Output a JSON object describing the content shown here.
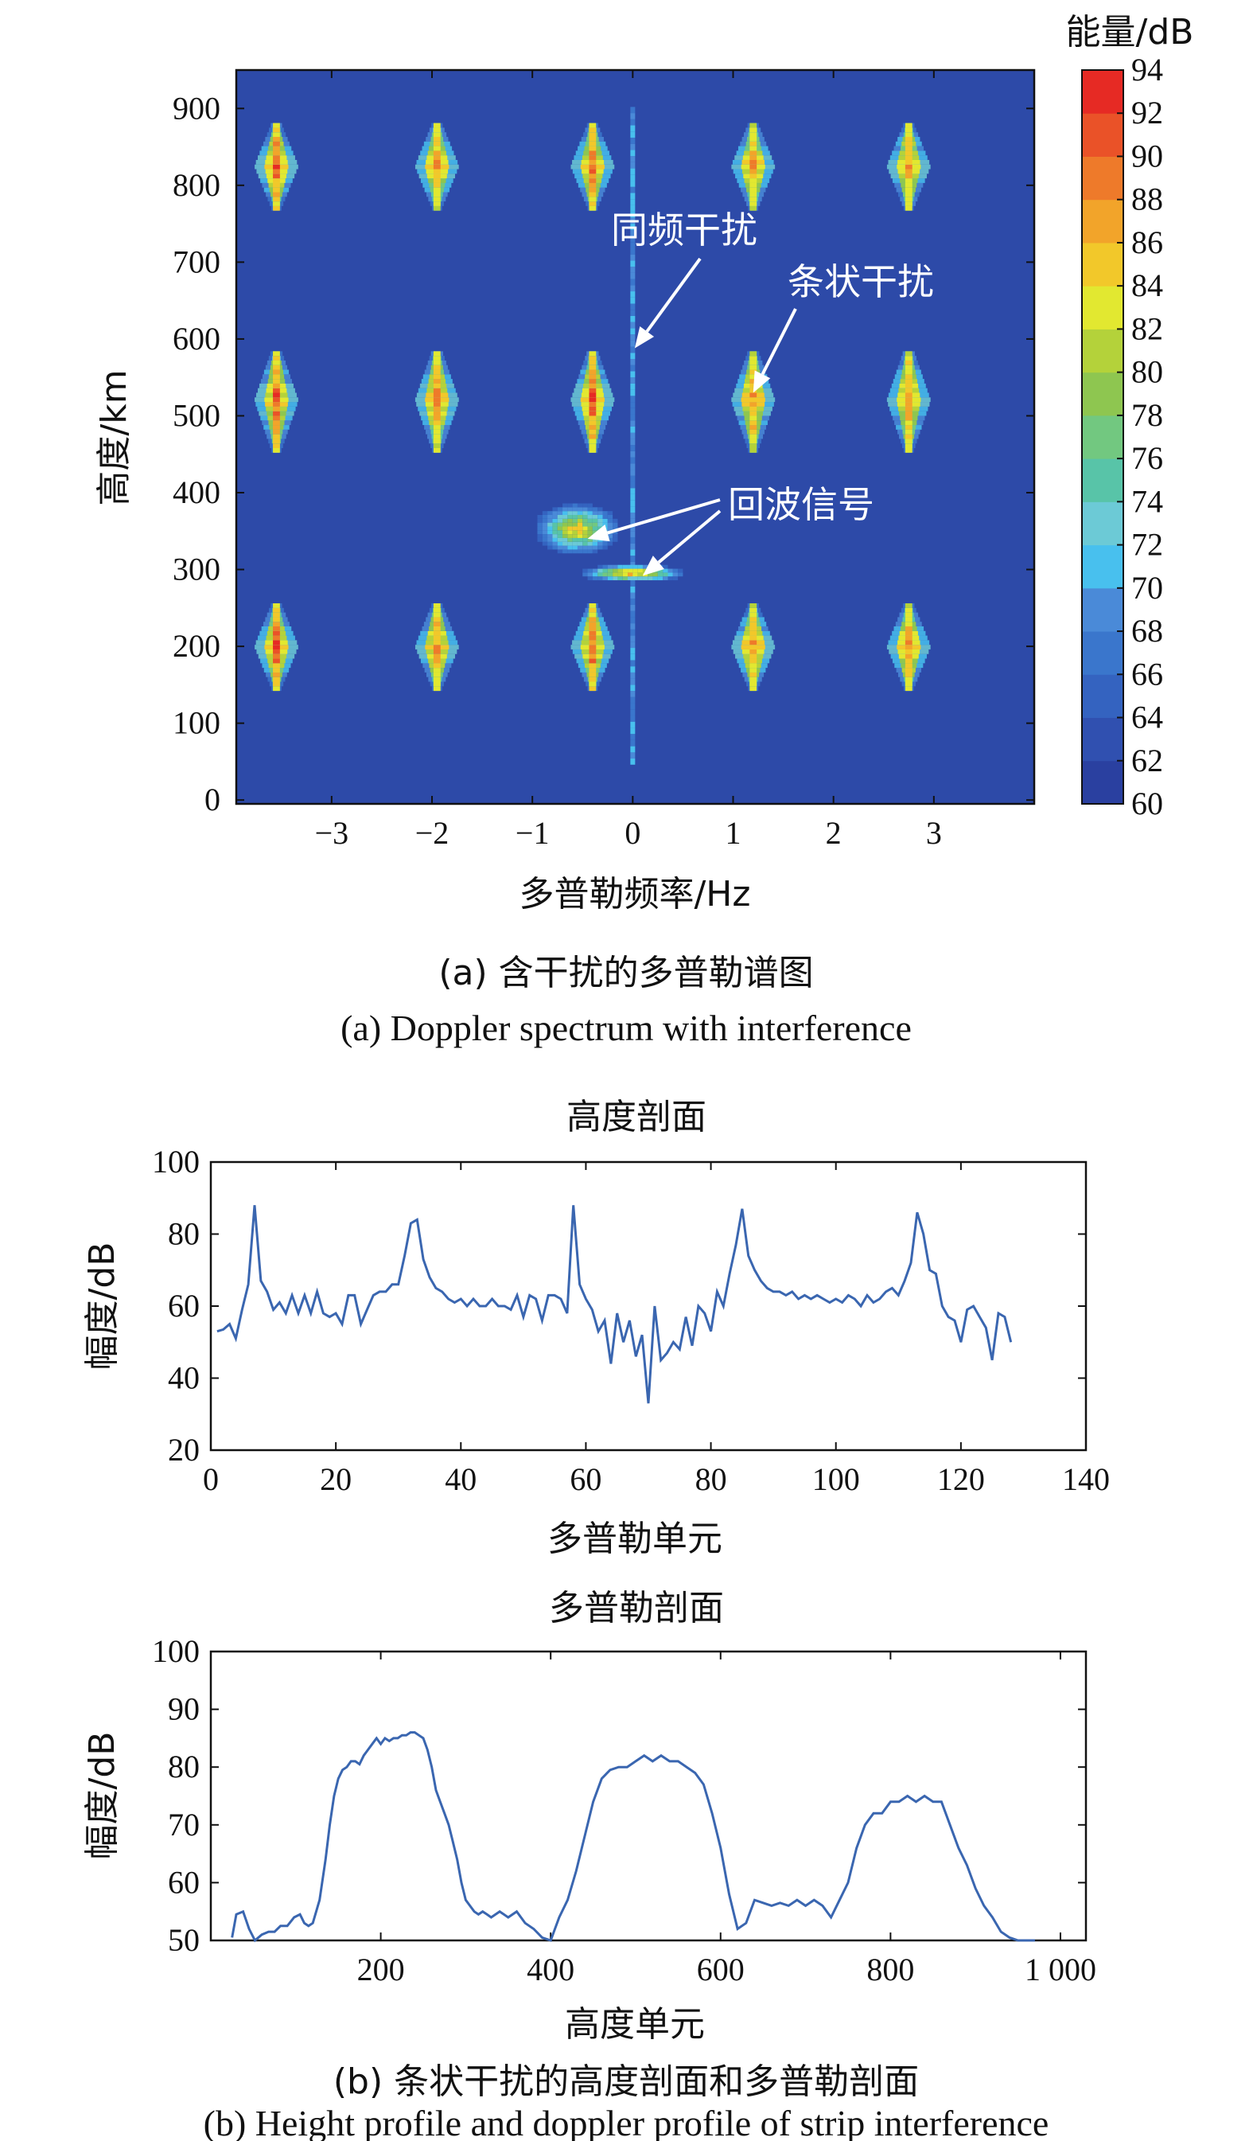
{
  "figure_a": {
    "caption_zh": "(a) 含干扰的多普勒谱图",
    "caption_en": "(a) Doppler spectrum with interference"
  },
  "figure_b": {
    "caption_zh": "(b) 条状干扰的高度剖面和多普勒剖面",
    "caption_en": "(b) Height profile and doppler profile of strip interference"
  },
  "chart_data": [
    {
      "type": "heatmap",
      "title": "",
      "xlabel": "多普勒频率/Hz",
      "ylabel": "高度/km",
      "xlim": [
        -3.95,
        4.0
      ],
      "ylim": [
        -5,
        950
      ],
      "x_ticks": [
        -3,
        -2,
        -1,
        0,
        1,
        2,
        3
      ],
      "x_tick_labels": [
        "−3",
        "−2",
        "−1",
        "0",
        "1",
        "2",
        "3"
      ],
      "y_ticks": [
        0,
        100,
        200,
        300,
        400,
        500,
        600,
        700,
        800,
        900
      ],
      "colorbar": {
        "label": "能量/dB",
        "min": 60,
        "max": 94,
        "ticks": [
          60,
          62,
          64,
          66,
          68,
          70,
          72,
          74,
          76,
          78,
          80,
          82,
          84,
          86,
          88,
          90,
          92,
          94
        ],
        "colors": [
          "#2a40a0",
          "#3050b0",
          "#3463c0",
          "#3a76cc",
          "#4a8ad8",
          "#48c0ee",
          "#6ccad6",
          "#58c4a8",
          "#72c880",
          "#8ec650",
          "#b4d23a",
          "#e2e830",
          "#f2c82a",
          "#f2a42a",
          "#ee7a2a",
          "#ea5228",
          "#e62a24"
        ]
      },
      "background_color": "#2d4aa8",
      "strips": [
        {
          "x": -3.55,
          "y_ranges": [
            [
              145,
              255
            ],
            [
              455,
              585
            ],
            [
              770,
              880
            ]
          ],
          "peak": 94
        },
        {
          "x": -1.95,
          "y_ranges": [
            [
              145,
              255
            ],
            [
              455,
              585
            ],
            [
              770,
              880
            ]
          ],
          "peak": 90
        },
        {
          "x": -0.4,
          "y_ranges": [
            [
              145,
              255
            ],
            [
              455,
              585
            ],
            [
              770,
              880
            ]
          ],
          "peak": 94
        },
        {
          "x": 1.2,
          "y_ranges": [
            [
              145,
              255
            ],
            [
              455,
              585
            ],
            [
              770,
              880
            ]
          ],
          "peak": 90
        },
        {
          "x": 2.75,
          "y_ranges": [
            [
              145,
              255
            ],
            [
              455,
              585
            ],
            [
              770,
              880
            ]
          ],
          "peak": 90
        }
      ],
      "interference_line": {
        "x": 0.0,
        "y_range": [
          50,
          905
        ]
      },
      "echo_blobs": [
        {
          "x_range": [
            -0.85,
            -0.3
          ],
          "y_range": [
            320,
            380
          ],
          "peak": 90
        },
        {
          "x_range": [
            -0.4,
            0.35
          ],
          "y_range": [
            285,
            300
          ],
          "peak": 94
        }
      ],
      "annotations": [
        {
          "text": "同频干扰",
          "target": [
            0.02,
            588
          ]
        },
        {
          "text": "条状干扰",
          "target": [
            1.2,
            530
          ]
        },
        {
          "text": "回波信号",
          "targets": [
            [
              -0.45,
              340
            ],
            [
              0.1,
              292
            ]
          ]
        }
      ]
    },
    {
      "type": "line",
      "title": "高度剖面",
      "xlabel": "多普勒单元",
      "ylabel": "幅度/dB",
      "xlim": [
        0,
        140
      ],
      "ylim": [
        20,
        100
      ],
      "x_ticks": [
        0,
        20,
        40,
        60,
        80,
        100,
        120,
        140
      ],
      "y_ticks": [
        20,
        40,
        60,
        80,
        100
      ],
      "line_color": "#3a66b0",
      "x": [
        1,
        2,
        3,
        4,
        5,
        6,
        7,
        8,
        9,
        10,
        11,
        12,
        13,
        14,
        15,
        16,
        17,
        18,
        19,
        20,
        21,
        22,
        23,
        24,
        25,
        26,
        27,
        28,
        29,
        30,
        31,
        32,
        33,
        34,
        35,
        36,
        37,
        38,
        39,
        40,
        41,
        42,
        43,
        44,
        45,
        46,
        47,
        48,
        49,
        50,
        51,
        52,
        53,
        54,
        55,
        56,
        57,
        58,
        59,
        60,
        61,
        62,
        63,
        64,
        65,
        66,
        67,
        68,
        69,
        70,
        71,
        72,
        73,
        74,
        75,
        76,
        77,
        78,
        79,
        80,
        81,
        82,
        83,
        84,
        85,
        86,
        87,
        88,
        89,
        90,
        91,
        92,
        93,
        94,
        95,
        96,
        97,
        98,
        99,
        100,
        101,
        102,
        103,
        104,
        105,
        106,
        107,
        108,
        109,
        110,
        111,
        112,
        113,
        114,
        115,
        116,
        117,
        118,
        119,
        120,
        121,
        122,
        123,
        124,
        125,
        126,
        127,
        128
      ],
      "values": [
        53,
        53.5,
        55,
        51,
        59,
        66,
        88,
        67,
        64,
        59,
        61,
        58,
        63,
        58,
        63,
        58,
        64,
        58,
        57,
        58,
        55,
        63,
        63,
        55,
        59,
        63,
        64,
        64,
        66,
        66,
        74,
        83,
        84,
        73,
        68,
        65,
        64,
        62,
        61,
        62,
        60,
        62,
        60,
        60,
        62,
        60,
        60,
        59,
        63,
        57,
        63,
        62,
        56,
        63,
        63,
        62,
        58,
        88,
        66,
        62,
        59,
        53,
        56,
        44,
        58,
        50,
        56,
        46,
        52,
        33,
        60,
        45,
        47,
        50,
        48,
        57,
        49,
        60,
        58,
        53,
        64,
        60,
        69,
        77,
        87,
        74,
        70,
        67,
        65,
        64,
        64,
        63,
        64,
        62,
        63,
        62,
        63,
        62,
        61,
        62,
        61,
        63,
        62,
        60,
        63,
        61,
        62,
        64,
        65,
        63,
        67,
        72,
        86,
        80,
        70,
        69,
        60,
        57,
        56,
        50,
        59,
        60,
        57,
        54,
        45,
        58,
        57,
        50
      ]
    },
    {
      "type": "line",
      "title": "多普勒剖面",
      "xlabel": "高度单元",
      "ylabel": "幅度/dB",
      "xlim": [
        0,
        1030
      ],
      "ylim": [
        50,
        100
      ],
      "x_ticks": [
        200,
        400,
        600,
        800,
        1000
      ],
      "x_tick_labels": [
        "200",
        "400",
        "600",
        "800",
        "1 000"
      ],
      "y_ticks": [
        50,
        60,
        70,
        80,
        90,
        100
      ],
      "line_color": "#3a66b0",
      "x": [
        25,
        30,
        38,
        45,
        52,
        60,
        68,
        75,
        82,
        90,
        98,
        105,
        110,
        115,
        120,
        128,
        135,
        140,
        145,
        150,
        155,
        160,
        165,
        170,
        175,
        180,
        185,
        190,
        195,
        200,
        205,
        210,
        215,
        220,
        225,
        230,
        235,
        240,
        245,
        250,
        255,
        260,
        265,
        270,
        275,
        280,
        285,
        290,
        295,
        300,
        305,
        310,
        315,
        320,
        325,
        330,
        340,
        350,
        360,
        370,
        380,
        390,
        400,
        410,
        420,
        430,
        440,
        450,
        460,
        470,
        480,
        490,
        500,
        510,
        520,
        530,
        540,
        550,
        560,
        570,
        580,
        590,
        600,
        610,
        620,
        630,
        640,
        650,
        660,
        670,
        680,
        690,
        700,
        710,
        720,
        730,
        740,
        750,
        760,
        770,
        780,
        790,
        800,
        810,
        820,
        830,
        840,
        850,
        860,
        870,
        880,
        890,
        900,
        910,
        920,
        930,
        940,
        950,
        960,
        970
      ],
      "values": [
        50.5,
        54.5,
        55,
        52,
        49.5,
        51,
        51.5,
        51.5,
        52.5,
        52.5,
        54,
        54.5,
        53,
        52.5,
        53,
        57,
        64,
        70,
        75,
        78,
        79.5,
        80,
        81,
        81,
        80.5,
        82,
        83,
        84,
        85,
        84,
        85,
        84.5,
        85,
        85,
        85.5,
        85.5,
        86,
        86,
        85.5,
        85,
        83,
        80,
        76,
        74,
        72,
        70,
        67,
        64,
        60,
        57,
        56,
        55,
        54.5,
        55,
        54.5,
        54,
        55,
        54,
        55,
        53,
        52,
        50.5,
        50,
        54,
        57,
        62,
        68,
        74,
        78,
        79.5,
        80,
        80,
        81,
        82,
        81,
        82,
        81,
        81,
        80,
        79,
        77,
        72,
        66,
        58,
        52,
        53,
        57,
        56.5,
        56,
        56.5,
        56,
        57,
        56,
        57,
        56,
        54,
        57,
        60,
        66,
        70,
        72,
        72,
        74,
        74,
        75,
        74,
        75,
        74,
        74,
        70,
        66,
        63,
        59,
        56,
        54,
        51.5,
        50.5,
        50,
        50,
        50
      ]
    }
  ]
}
